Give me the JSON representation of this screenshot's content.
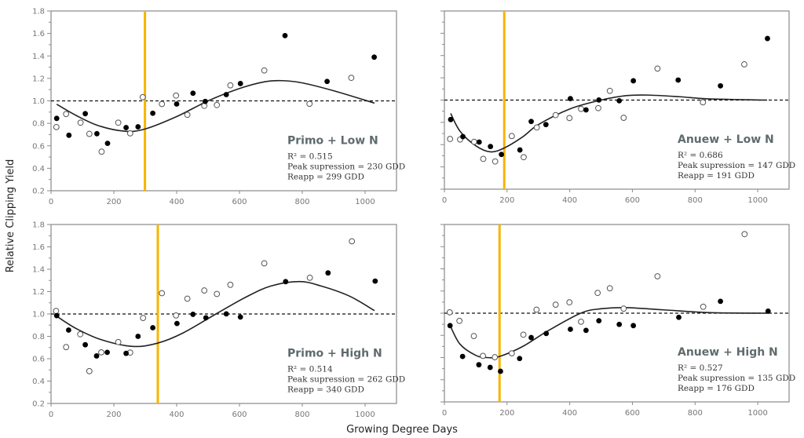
{
  "chart_data": [
    {
      "type": "scatter",
      "title": "Primo + Low N",
      "stats": [
        "R² = 0.515",
        "Peak supression = 230 GDD",
        "Reapp = 299 GDD"
      ],
      "reapp": 299,
      "filled": [
        [
          18,
          0.844
        ],
        [
          57,
          0.694
        ],
        [
          109,
          0.886
        ],
        [
          146,
          0.708
        ],
        [
          180,
          0.622
        ],
        [
          239,
          0.762
        ],
        [
          277,
          0.769
        ],
        [
          324,
          0.89
        ],
        [
          400,
          0.972
        ],
        [
          452,
          1.068
        ],
        [
          491,
          0.995
        ],
        [
          558,
          1.056
        ],
        [
          603,
          1.154
        ],
        [
          745,
          1.581
        ],
        [
          879,
          1.173
        ],
        [
          1029,
          1.389
        ]
      ],
      "open": [
        [
          17,
          0.767
        ],
        [
          48,
          0.883
        ],
        [
          94,
          0.806
        ],
        [
          122,
          0.706
        ],
        [
          161,
          0.548
        ],
        [
          214,
          0.806
        ],
        [
          252,
          0.711
        ],
        [
          292,
          1.033
        ],
        [
          353,
          0.972
        ],
        [
          398,
          1.047
        ],
        [
          434,
          0.876
        ],
        [
          488,
          0.956
        ],
        [
          528,
          0.963
        ],
        [
          571,
          1.138
        ],
        [
          679,
          1.271
        ],
        [
          823,
          0.974
        ],
        [
          956,
          1.205
        ]
      ],
      "fit": [
        [
          18,
          0.97
        ],
        [
          80,
          0.87
        ],
        [
          150,
          0.78
        ],
        [
          235,
          0.73
        ],
        [
          300,
          0.75
        ],
        [
          400,
          0.86
        ],
        [
          500,
          1.0
        ],
        [
          600,
          1.11
        ],
        [
          680,
          1.17
        ],
        [
          735,
          1.18
        ],
        [
          800,
          1.16
        ],
        [
          900,
          1.09
        ],
        [
          1030,
          0.98
        ]
      ]
    },
    {
      "type": "scatter",
      "title": "Anuew + Low N",
      "stats": [
        "R² = 0.686",
        "Peak supression = 147 GDD",
        "Reapp = 191 GDD"
      ],
      "reapp": 191,
      "filled": [
        [
          20,
          0.825
        ],
        [
          59,
          0.672
        ],
        [
          111,
          0.623
        ],
        [
          147,
          0.583
        ],
        [
          182,
          0.512
        ],
        [
          241,
          0.552
        ],
        [
          277,
          0.808
        ],
        [
          324,
          0.78
        ],
        [
          402,
          1.013
        ],
        [
          452,
          0.912
        ],
        [
          493,
          1.001
        ],
        [
          558,
          0.994
        ],
        [
          603,
          1.173
        ],
        [
          746,
          1.18
        ],
        [
          881,
          1.128
        ],
        [
          1031,
          1.553
        ]
      ],
      "open": [
        [
          18,
          0.651
        ],
        [
          50,
          0.646
        ],
        [
          95,
          0.625
        ],
        [
          124,
          0.472
        ],
        [
          162,
          0.449
        ],
        [
          215,
          0.677
        ],
        [
          253,
          0.487
        ],
        [
          295,
          0.754
        ],
        [
          355,
          0.865
        ],
        [
          399,
          0.839
        ],
        [
          436,
          0.921
        ],
        [
          491,
          0.928
        ],
        [
          528,
          1.083
        ],
        [
          572,
          0.841
        ],
        [
          680,
          1.283
        ],
        [
          825,
          0.98
        ],
        [
          957,
          1.321
        ]
      ],
      "fit": [
        [
          20,
          0.88
        ],
        [
          50,
          0.72
        ],
        [
          100,
          0.59
        ],
        [
          147,
          0.535
        ],
        [
          191,
          0.57
        ],
        [
          250,
          0.67
        ],
        [
          300,
          0.78
        ],
        [
          400,
          0.92
        ],
        [
          500,
          1.0
        ],
        [
          580,
          1.04
        ],
        [
          650,
          1.045
        ],
        [
          750,
          1.03
        ],
        [
          850,
          1.01
        ],
        [
          1030,
          1.0
        ]
      ]
    },
    {
      "type": "scatter",
      "title": "Primo + High N",
      "stats": [
        "R² = 0.514",
        "Peak supression = 262 GDD",
        "Reapp = 340 GDD"
      ],
      "reapp": 340,
      "filled": [
        [
          18,
          0.985
        ],
        [
          56,
          0.856
        ],
        [
          109,
          0.725
        ],
        [
          145,
          0.625
        ],
        [
          179,
          0.657
        ],
        [
          239,
          0.648
        ],
        [
          277,
          0.8
        ],
        [
          324,
          0.877
        ],
        [
          401,
          0.915
        ],
        [
          452,
          0.997
        ],
        [
          493,
          0.966
        ],
        [
          558,
          1.001
        ],
        [
          603,
          0.973
        ],
        [
          747,
          1.289
        ],
        [
          882,
          1.367
        ],
        [
          1032,
          1.294
        ]
      ],
      "open": [
        [
          16,
          1.027
        ],
        [
          48,
          0.704
        ],
        [
          93,
          0.819
        ],
        [
          122,
          0.489
        ],
        [
          160,
          0.657
        ],
        [
          214,
          0.749
        ],
        [
          252,
          0.655
        ],
        [
          293,
          0.964
        ],
        [
          353,
          1.186
        ],
        [
          398,
          0.987
        ],
        [
          434,
          1.137
        ],
        [
          488,
          1.21
        ],
        [
          528,
          1.179
        ],
        [
          571,
          1.261
        ],
        [
          679,
          1.453
        ],
        [
          824,
          1.324
        ],
        [
          958,
          1.65
        ]
      ],
      "fit": [
        [
          18,
          0.98
        ],
        [
          80,
          0.87
        ],
        [
          160,
          0.77
        ],
        [
          260,
          0.71
        ],
        [
          340,
          0.74
        ],
        [
          420,
          0.83
        ],
        [
          525,
          1.0
        ],
        [
          620,
          1.15
        ],
        [
          700,
          1.25
        ],
        [
          790,
          1.29
        ],
        [
          860,
          1.25
        ],
        [
          950,
          1.16
        ],
        [
          1030,
          1.03
        ]
      ]
    },
    {
      "type": "scatter",
      "title": "Anuew + High N",
      "stats": [
        "R² = 0.527",
        "Peak supression = 135 GDD",
        "Reapp = 176 GDD"
      ],
      "reapp": 176,
      "filled": [
        [
          18,
          0.888
        ],
        [
          58,
          0.61
        ],
        [
          110,
          0.535
        ],
        [
          146,
          0.511
        ],
        [
          179,
          0.476
        ],
        [
          240,
          0.591
        ],
        [
          277,
          0.78
        ],
        [
          325,
          0.817
        ],
        [
          402,
          0.855
        ],
        [
          452,
          0.845
        ],
        [
          493,
          0.932
        ],
        [
          558,
          0.899
        ],
        [
          603,
          0.888
        ],
        [
          748,
          0.963
        ],
        [
          881,
          1.107
        ],
        [
          1033,
          1.018
        ]
      ],
      "open": [
        [
          17,
          1.008
        ],
        [
          48,
          0.931
        ],
        [
          94,
          0.794
        ],
        [
          123,
          0.615
        ],
        [
          161,
          0.603
        ],
        [
          215,
          0.638
        ],
        [
          252,
          0.806
        ],
        [
          294,
          1.032
        ],
        [
          355,
          1.077
        ],
        [
          399,
          1.098
        ],
        [
          436,
          0.923
        ],
        [
          489,
          1.183
        ],
        [
          528,
          1.225
        ],
        [
          572,
          1.041
        ],
        [
          680,
          1.333
        ],
        [
          826,
          1.058
        ],
        [
          958,
          1.713
        ]
      ],
      "fit": [
        [
          18,
          0.89
        ],
        [
          50,
          0.72
        ],
        [
          100,
          0.62
        ],
        [
          135,
          0.6
        ],
        [
          176,
          0.61
        ],
        [
          250,
          0.7
        ],
        [
          330,
          0.84
        ],
        [
          435,
          1.0
        ],
        [
          500,
          1.04
        ],
        [
          580,
          1.05
        ],
        [
          700,
          1.03
        ],
        [
          850,
          1.005
        ],
        [
          1030,
          1.0
        ]
      ]
    }
  ],
  "axes": {
    "xlabel": "Growing Degree Days",
    "ylabel": "Relative Clipping Yield",
    "xlim": [
      0,
      1100
    ],
    "ylim": [
      0.2,
      1.8
    ],
    "xticks": [
      "0",
      "200",
      "400",
      "600",
      "800",
      "1000"
    ],
    "yticks": [
      "0.2",
      "0.4",
      "0.6",
      "0.8",
      "1.0",
      "1.2",
      "1.4",
      "1.6",
      "1.8"
    ],
    "reference_line": 1.0
  },
  "colors": {
    "reapp_line": "#f7b500",
    "axis": "#8a8a8a",
    "points": "#000000",
    "fit": "#222222"
  }
}
